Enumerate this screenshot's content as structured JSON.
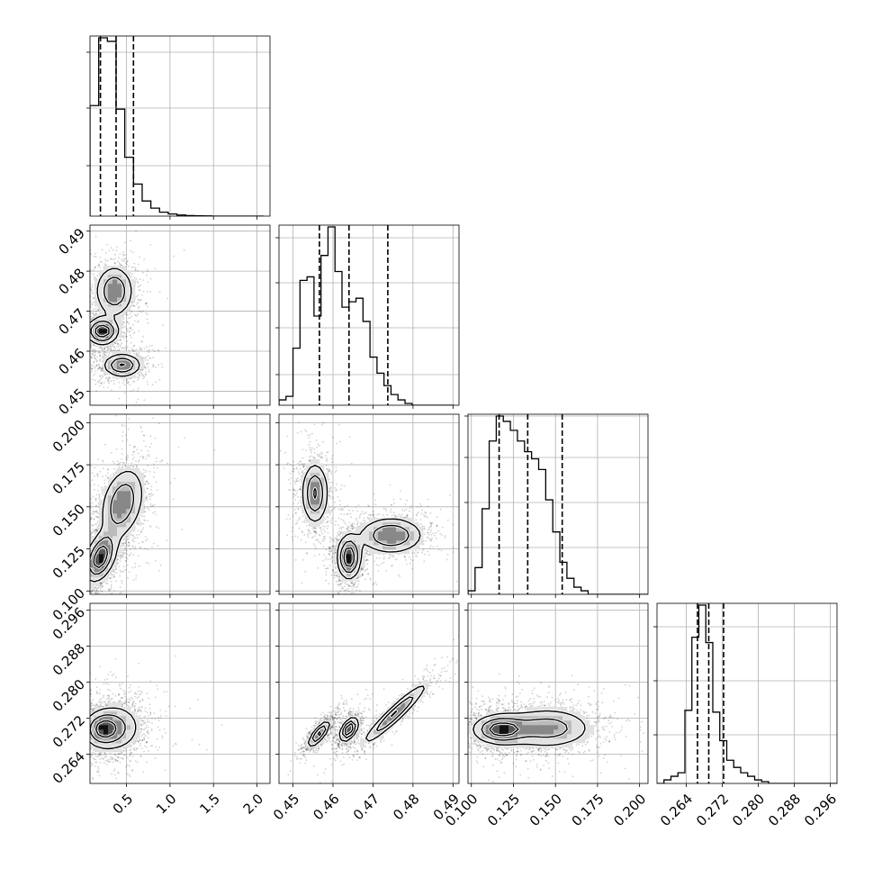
{
  "chart_data": {
    "type": "corner",
    "grid": true,
    "params": [
      {
        "id": "p0",
        "range": [
          0.08,
          2.15
        ],
        "ticks": [
          "0.5",
          "1.0",
          "1.5",
          "2.0"
        ],
        "tick_values": [
          0.5,
          1.0,
          1.5,
          2.0
        ],
        "quantiles": [
          0.2,
          0.38,
          0.58
        ],
        "hist": {
          "edges_start": 0.08,
          "bin_width": 0.1,
          "counts": [
            0.62,
            1.0,
            0.98,
            0.6,
            0.33,
            0.18,
            0.085,
            0.045,
            0.022,
            0.012,
            0.006,
            0.003,
            0.002,
            0.001,
            0,
            0,
            0,
            0,
            0,
            0
          ]
        },
        "hist_yticks": [
          0.28,
          0.6,
          0.91
        ]
      },
      {
        "id": "p1",
        "range": [
          0.4465,
          0.4915
        ],
        "ticks": [
          "0.45",
          "0.46",
          "0.47",
          "0.48",
          "0.49"
        ],
        "tick_values": [
          0.45,
          0.46,
          0.47,
          0.48,
          0.49
        ],
        "quantiles": [
          0.4566,
          0.464,
          0.4737
        ],
        "hist": {
          "edges_start": 0.4465,
          "bin_width": 0.00175,
          "counts": [
            0.03,
            0.05,
            0.32,
            0.7,
            0.72,
            0.5,
            0.84,
            1.0,
            0.75,
            0.55,
            0.58,
            0.6,
            0.47,
            0.27,
            0.18,
            0.11,
            0.06,
            0.03,
            0.01,
            0.0,
            0.0,
            0.0,
            0.0,
            0.0,
            0.0
          ]
        },
        "hist_yticks": [
          0.17,
          0.43,
          0.68,
          0.93
        ]
      },
      {
        "id": "p2",
        "range": [
          0.098,
          0.205
        ],
        "ticks": [
          "0.100",
          "0.125",
          "0.150",
          "0.175",
          "0.200"
        ],
        "tick_values": [
          0.1,
          0.125,
          0.15,
          0.175,
          0.2
        ],
        "quantiles": [
          0.1165,
          0.1335,
          0.154
        ],
        "hist": {
          "edges_start": 0.098,
          "bin_width": 0.0042,
          "counts": [
            0.02,
            0.15,
            0.48,
            0.86,
            1.0,
            0.97,
            0.92,
            0.86,
            0.8,
            0.76,
            0.7,
            0.53,
            0.35,
            0.18,
            0.09,
            0.04,
            0.02,
            0.0,
            0.0,
            0.0,
            0.0,
            0.0,
            0.0,
            0.0,
            0.0,
            0.0
          ]
        },
        "hist_yticks": [
          0.26,
          0.51,
          0.76,
          0.99
        ]
      },
      {
        "id": "p3",
        "range": [
          0.2575,
          0.2975
        ],
        "ticks": [
          "0.264",
          "0.272",
          "0.280",
          "0.288",
          "0.296"
        ],
        "tick_values": [
          0.264,
          0.272,
          0.28,
          0.288,
          0.296
        ],
        "quantiles": [
          0.2665,
          0.269,
          0.2723
        ],
        "hist": {
          "edges_start": 0.2575,
          "bin_width": 0.00155,
          "counts": [
            0.0,
            0.02,
            0.04,
            0.06,
            0.41,
            0.82,
            1.0,
            0.79,
            0.4,
            0.24,
            0.13,
            0.09,
            0.06,
            0.04,
            0.02,
            0.01,
            0.0,
            0.0,
            0.0,
            0.0,
            0.0,
            0.0,
            0.0,
            0.0,
            0.0,
            0.0
          ]
        },
        "hist_yticks": [
          0.27,
          0.57,
          0.87
        ]
      }
    ],
    "pairs": [
      {
        "xi": 0,
        "yi": 1,
        "modes": [
          {
            "cx": 0.22,
            "cy": 0.465,
            "sx": 0.1,
            "sy": 0.0018,
            "r": 0.0,
            "w": 1.0
          },
          {
            "cx": 0.36,
            "cy": 0.475,
            "sx": 0.12,
            "sy": 0.0035,
            "r": 0.0,
            "w": 0.7
          },
          {
            "cx": 0.45,
            "cy": 0.4565,
            "sx": 0.12,
            "sy": 0.0016,
            "r": 0.0,
            "w": 0.75
          }
        ]
      },
      {
        "xi": 0,
        "yi": 2,
        "modes": [
          {
            "cx": 0.2,
            "cy": 0.12,
            "sx": 0.1,
            "sy": 0.008,
            "r": 0.4,
            "w": 1.0
          },
          {
            "cx": 0.45,
            "cy": 0.152,
            "sx": 0.14,
            "sy": 0.012,
            "r": 0.3,
            "w": 0.7
          }
        ]
      },
      {
        "xi": 1,
        "yi": 2,
        "modes": [
          {
            "cx": 0.4555,
            "cy": 0.158,
            "sx": 0.0018,
            "sy": 0.01,
            "r": 0.0,
            "w": 0.75
          },
          {
            "cx": 0.464,
            "cy": 0.12,
            "sx": 0.0016,
            "sy": 0.007,
            "r": 0.0,
            "w": 1.0
          },
          {
            "cx": 0.4745,
            "cy": 0.133,
            "sx": 0.0045,
            "sy": 0.006,
            "r": 0.0,
            "w": 0.7
          }
        ]
      },
      {
        "xi": 0,
        "yi": 3,
        "modes": [
          {
            "cx": 0.22,
            "cy": 0.2695,
            "sx": 0.12,
            "sy": 0.0022,
            "r": 0.0,
            "w": 1.0
          },
          {
            "cx": 0.4,
            "cy": 0.27,
            "sx": 0.16,
            "sy": 0.003,
            "r": 0.0,
            "w": 0.6
          }
        ]
      },
      {
        "xi": 1,
        "yi": 3,
        "modes": [
          {
            "cx": 0.4565,
            "cy": 0.2685,
            "sx": 0.0015,
            "sy": 0.0016,
            "r": 0.8,
            "w": 0.8
          },
          {
            "cx": 0.464,
            "cy": 0.2695,
            "sx": 0.0012,
            "sy": 0.0014,
            "r": 0.5,
            "w": 1.0
          },
          {
            "cx": 0.4755,
            "cy": 0.273,
            "sx": 0.0045,
            "sy": 0.0038,
            "r": 0.95,
            "w": 0.7
          }
        ]
      },
      {
        "xi": 2,
        "yi": 3,
        "modes": [
          {
            "cx": 0.117,
            "cy": 0.2695,
            "sx": 0.009,
            "sy": 0.0018,
            "r": 0.0,
            "w": 1.0
          },
          {
            "cx": 0.145,
            "cy": 0.2698,
            "sx": 0.015,
            "sy": 0.0025,
            "r": 0.0,
            "w": 0.7
          }
        ]
      }
    ]
  }
}
